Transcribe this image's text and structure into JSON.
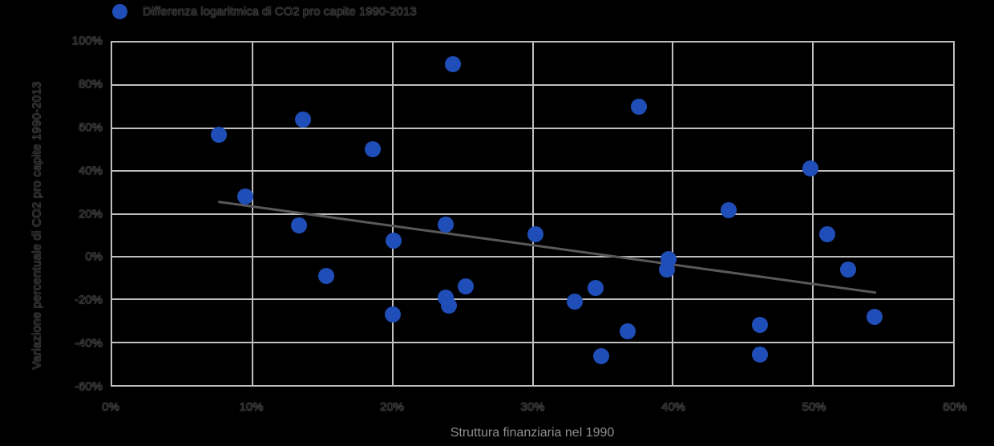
{
  "legend": {
    "label": "Differenza logaritmica di CO2 pro capite 1990-2013",
    "marker_color": "#1F4EB8"
  },
  "x_axis": {
    "title": "Struttura finanziaria nel 1990",
    "ticks": [
      "0%",
      "10%",
      "20%",
      "30%",
      "40%",
      "50%",
      "60%"
    ]
  },
  "y_axis": {
    "title": "Variazione percentuale di CO2 pro capite 1990-2013",
    "ticks": [
      "100%",
      "80%",
      "60%",
      "40%",
      "20%",
      "0%",
      "-20%",
      "-40%",
      "-60%"
    ]
  },
  "colors": {
    "background": "#000000",
    "point": "#1F4EB8",
    "grid": "#BFBFBF",
    "trend": "#595959",
    "axis_title": "#8F8F8F"
  },
  "chart_data": {
    "type": "scatter",
    "title": "",
    "xlabel": "Struttura finanziaria nel 1990",
    "ylabel": "Variazione percentuale di CO2 pro capite 1990-2013",
    "xlim": [
      0,
      60
    ],
    "ylim": [
      -60,
      100
    ],
    "grid": true,
    "legend_position": "top-left",
    "x_unit": "%",
    "y_unit": "%",
    "series": [
      {
        "name": "Differenza logaritmica di CO2 pro capite 1990-2013",
        "color": "#1F4EB8",
        "points": [
          [
            7.6,
            57
          ],
          [
            9.5,
            28
          ],
          [
            13.3,
            14.5
          ],
          [
            13.6,
            64
          ],
          [
            15.3,
            -9
          ],
          [
            18.6,
            50
          ],
          [
            20.0,
            -27
          ],
          [
            20.1,
            7.5
          ],
          [
            23.8,
            15
          ],
          [
            23.8,
            -19
          ],
          [
            24.0,
            -23
          ],
          [
            24.3,
            90
          ],
          [
            25.2,
            -14
          ],
          [
            30.2,
            10.5
          ],
          [
            33.0,
            -21
          ],
          [
            34.5,
            -14.7
          ],
          [
            34.9,
            -46.6
          ],
          [
            36.8,
            -35
          ],
          [
            37.6,
            70
          ],
          [
            39.6,
            -6
          ],
          [
            39.7,
            -1
          ],
          [
            44.0,
            21.5
          ],
          [
            46.2,
            -32
          ],
          [
            46.2,
            -45.6
          ],
          [
            49.8,
            41
          ],
          [
            51.0,
            10.4
          ],
          [
            52.5,
            -6
          ],
          [
            54.4,
            -28
          ]
        ]
      }
    ],
    "trendline": {
      "x1": 7.5,
      "y1": 26.4,
      "x2": 54.3,
      "y2": -15.7,
      "color": "#595959"
    }
  }
}
